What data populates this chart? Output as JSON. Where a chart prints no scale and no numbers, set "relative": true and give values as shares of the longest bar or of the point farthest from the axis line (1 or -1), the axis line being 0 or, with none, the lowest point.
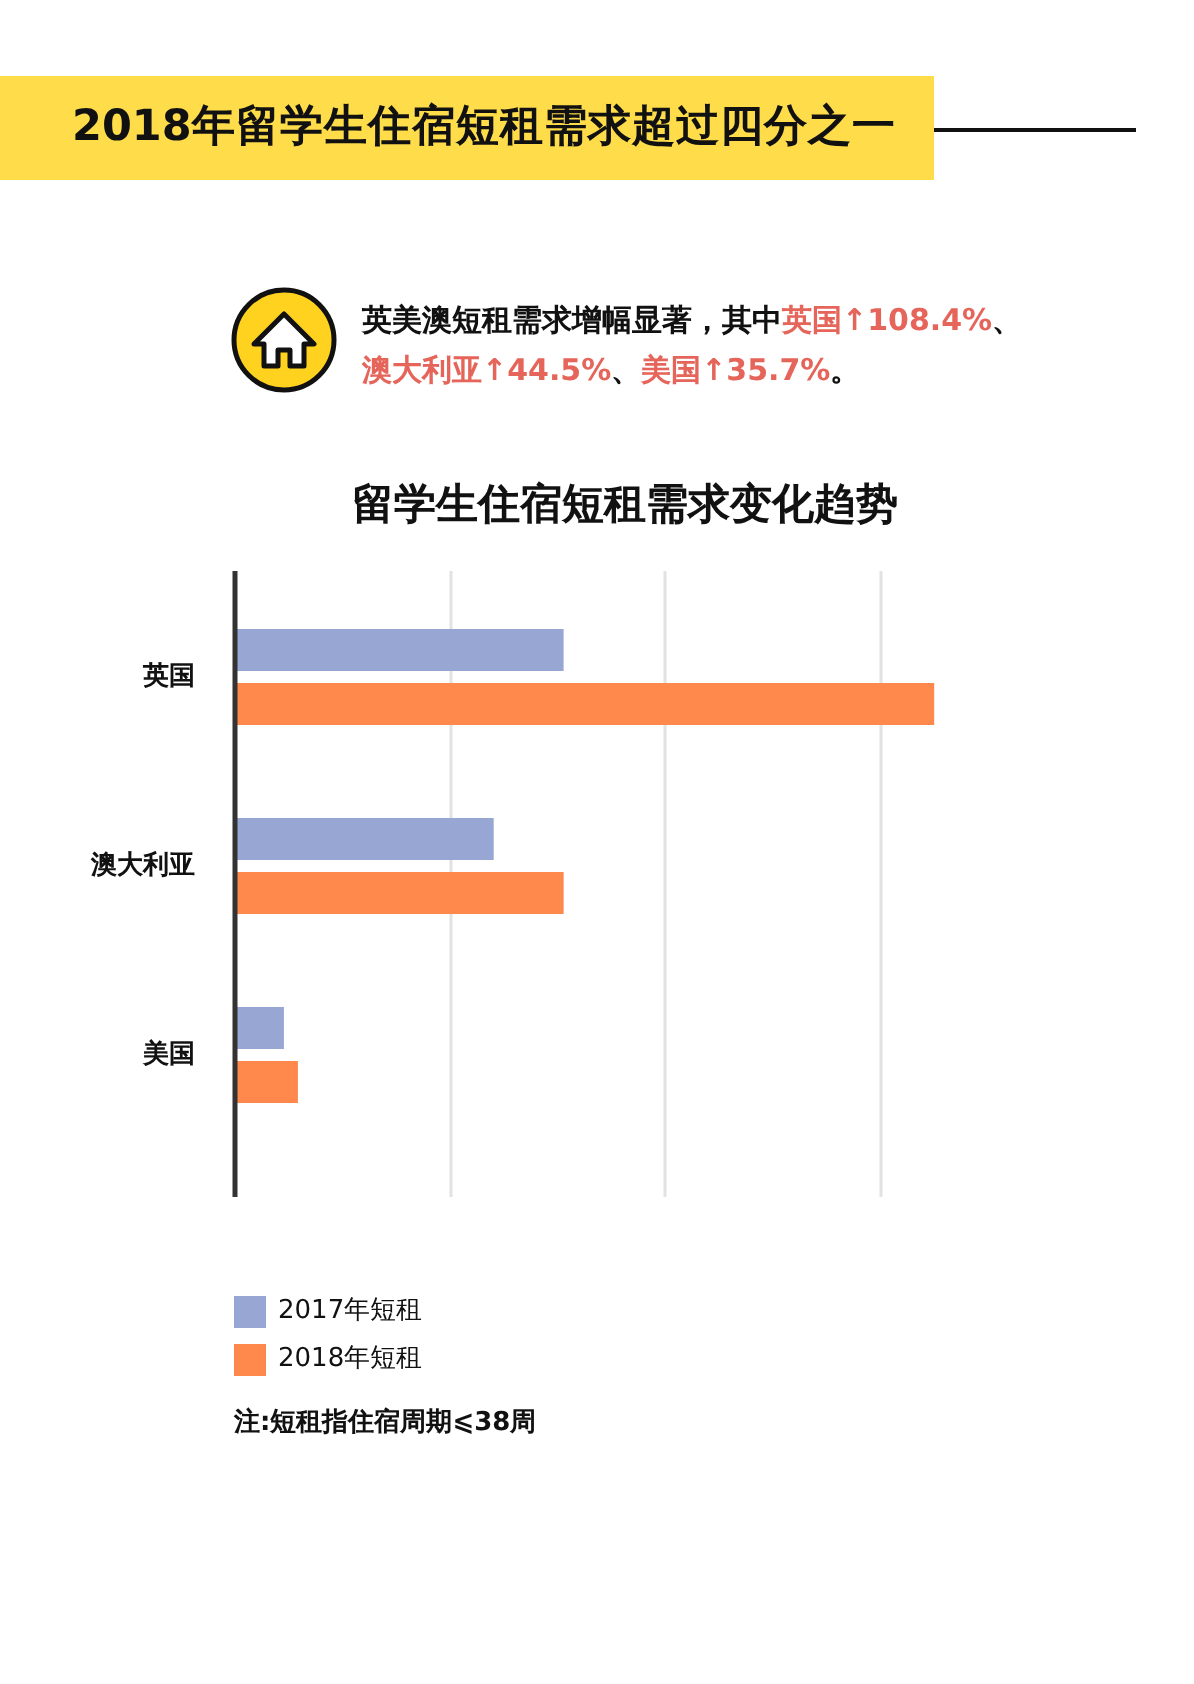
{
  "chart_data": {
    "type": "bar",
    "title": "2018年留学生住宿短租需求超过四分之一",
    "subtitle": "留学生住宿短租需求变化趋势",
    "annotations": [
      "英美澳短租需求增幅显著，其中英国↑108.4%、澳大利亚↑44.5%、美国↑35.7%。",
      "注:短租指住宿周期⩽38周"
    ],
    "orientation": "horizontal",
    "relative": true,
    "categories": [
      "英国",
      "澳大利亚",
      "美国"
    ],
    "series": [
      {
        "name": "2017年短租",
        "color": "#98a6d4",
        "values": [
          0.47,
          0.37,
          0.07
        ]
      },
      {
        "name": "2018年短租",
        "color": "#ff884c",
        "values": [
          1,
          0.47,
          0.09
        ]
      }
    ],
    "grid": "x",
    "legend": "bottom left"
  }
}
